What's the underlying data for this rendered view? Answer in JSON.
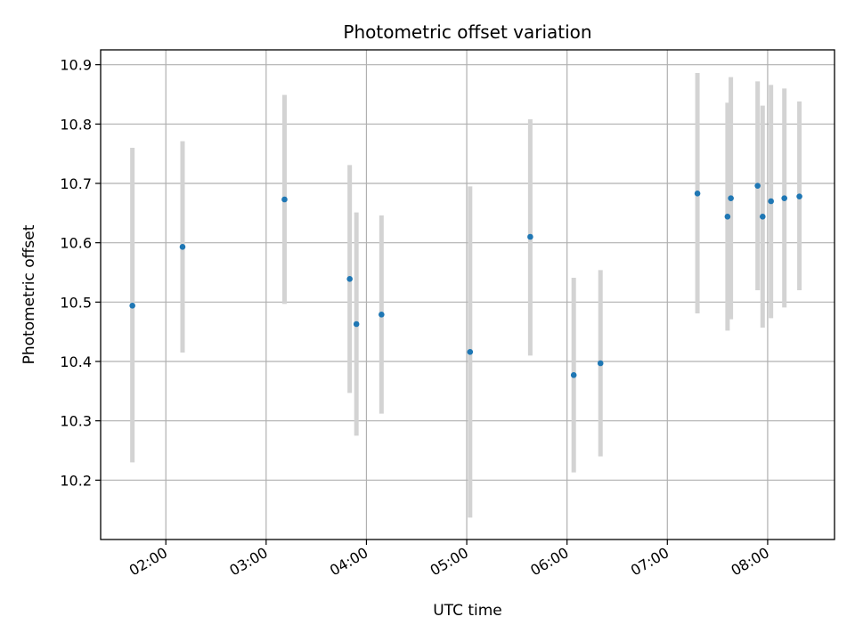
{
  "chart_data": {
    "type": "scatter",
    "title": "Photometric offset variation",
    "xlabel": "UTC time",
    "ylabel": "Photometric offset",
    "x_ticks": [
      "02:00",
      "03:00",
      "04:00",
      "05:00",
      "06:00",
      "07:00",
      "08:00"
    ],
    "y_ticks": [
      10.2,
      10.3,
      10.4,
      10.5,
      10.6,
      10.7,
      10.8,
      10.9
    ],
    "xlim": [
      "01:21",
      "08:40"
    ],
    "ylim": [
      10.1,
      10.925
    ],
    "grid": true,
    "colors": {
      "point": "#1f77b4",
      "errorbar": "#d3d3d3"
    },
    "points": [
      {
        "x": "01:40",
        "y": 10.494,
        "ylow": 10.23,
        "yhigh": 10.76
      },
      {
        "x": "02:10",
        "y": 10.593,
        "ylow": 10.415,
        "yhigh": 10.771
      },
      {
        "x": "03:11",
        "y": 10.673,
        "ylow": 10.497,
        "yhigh": 10.849
      },
      {
        "x": "03:50",
        "y": 10.539,
        "ylow": 10.347,
        "yhigh": 10.731
      },
      {
        "x": "03:54",
        "y": 10.463,
        "ylow": 10.275,
        "yhigh": 10.651
      },
      {
        "x": "04:09",
        "y": 10.479,
        "ylow": 10.312,
        "yhigh": 10.646
      },
      {
        "x": "05:02",
        "y": 10.416,
        "ylow": 10.137,
        "yhigh": 10.695
      },
      {
        "x": "05:38",
        "y": 10.61,
        "ylow": 10.41,
        "yhigh": 10.808
      },
      {
        "x": "06:04",
        "y": 10.377,
        "ylow": 10.213,
        "yhigh": 10.541
      },
      {
        "x": "06:20",
        "y": 10.397,
        "ylow": 10.24,
        "yhigh": 10.554
      },
      {
        "x": "07:18",
        "y": 10.683,
        "ylow": 10.481,
        "yhigh": 10.886
      },
      {
        "x": "07:36",
        "y": 10.644,
        "ylow": 10.452,
        "yhigh": 10.836
      },
      {
        "x": "07:38",
        "y": 10.675,
        "ylow": 10.471,
        "yhigh": 10.879
      },
      {
        "x": "07:54",
        "y": 10.696,
        "ylow": 10.52,
        "yhigh": 10.872
      },
      {
        "x": "07:57",
        "y": 10.644,
        "ylow": 10.457,
        "yhigh": 10.831
      },
      {
        "x": "08:02",
        "y": 10.67,
        "ylow": 10.473,
        "yhigh": 10.866
      },
      {
        "x": "08:10",
        "y": 10.675,
        "ylow": 10.491,
        "yhigh": 10.86
      },
      {
        "x": "08:19",
        "y": 10.678,
        "ylow": 10.52,
        "yhigh": 10.838
      }
    ]
  }
}
